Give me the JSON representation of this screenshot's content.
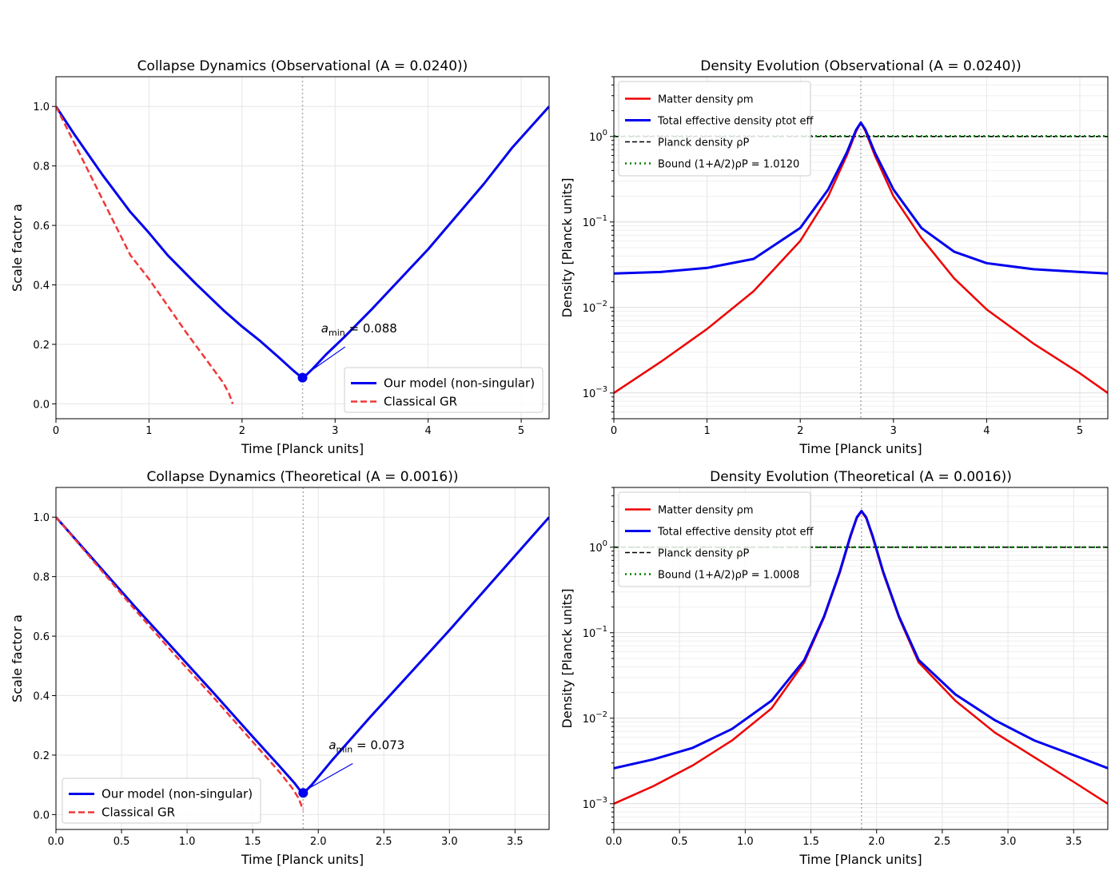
{
  "chart_data": [
    {
      "type": "line",
      "id": "p1",
      "title": "Collapse Dynamics (Observational (A = 0.0240))",
      "xlabel": "Time [Planck units]",
      "ylabel": "Scale factor a",
      "xlim": [
        0,
        5.3
      ],
      "ylim": [
        -0.05,
        1.1
      ],
      "yscale": "linear",
      "xticks": [
        0,
        1,
        2,
        3,
        4,
        5
      ],
      "xtick_labels": [
        "0",
        "1",
        "2",
        "3",
        "4",
        "5"
      ],
      "yticks": [
        0.0,
        0.2,
        0.4,
        0.6,
        0.8,
        1.0
      ],
      "ytick_labels": [
        "0.0",
        "0.2",
        "0.4",
        "0.6",
        "0.8",
        "1.0"
      ],
      "vline_x": 2.65,
      "series": [
        {
          "name": "Our model (non-singular)",
          "color": "#0000ee",
          "dash": "solid",
          "x": [
            0,
            0.2,
            0.5,
            0.8,
            1.0,
            1.2,
            1.5,
            1.8,
            2.0,
            2.2,
            2.4,
            2.55,
            2.62,
            2.65,
            2.68,
            2.75,
            2.9,
            3.1,
            3.4,
            3.7,
            4.0,
            4.3,
            4.6,
            4.9,
            5.1,
            5.3
          ],
          "y": [
            1.0,
            0.905,
            0.77,
            0.645,
            0.575,
            0.5,
            0.405,
            0.315,
            0.26,
            0.21,
            0.155,
            0.112,
            0.094,
            0.088,
            0.094,
            0.115,
            0.165,
            0.225,
            0.32,
            0.42,
            0.52,
            0.63,
            0.74,
            0.86,
            0.93,
            1.0
          ]
        },
        {
          "name": "Classical GR",
          "color": "#f03838",
          "dash": "dashed",
          "x": [
            0,
            0.2,
            0.4,
            0.6,
            0.8,
            1.0,
            1.2,
            1.4,
            1.6,
            1.8,
            1.86,
            1.9
          ],
          "y": [
            1.0,
            0.875,
            0.75,
            0.625,
            0.5,
            0.42,
            0.33,
            0.24,
            0.155,
            0.07,
            0.035,
            0.0
          ]
        }
      ],
      "marker": {
        "x": 2.65,
        "y": 0.088
      },
      "annotation": {
        "text_prefix": "a",
        "subscript": "min",
        "text_suffix": " = 0.088",
        "text_x": 2.85,
        "text_y": 0.24
      },
      "legend": {
        "placement": "lower-right",
        "entries": [
          "Our model (non-singular)",
          "Classical GR"
        ]
      }
    },
    {
      "type": "line",
      "id": "p2",
      "title": "Density Evolution (Observational (A = 0.0240))",
      "xlabel": "Time [Planck units]",
      "ylabel": "Density [Planck units]",
      "xlim": [
        0,
        5.3
      ],
      "ylim": [
        0.0005,
        5
      ],
      "yscale": "log",
      "xticks": [
        0,
        1,
        2,
        3,
        4,
        5
      ],
      "xtick_labels": [
        "0",
        "1",
        "2",
        "3",
        "4",
        "5"
      ],
      "ytick_exponents": [
        -3,
        -2,
        -1,
        0
      ],
      "vline_x": 2.65,
      "hlines": [
        {
          "name": "Planck density ρP",
          "y": 1.0,
          "color": "#000000",
          "dash": "dashed"
        },
        {
          "name": "Bound (1+A/2)ρP = 1.0120",
          "y": 1.012,
          "color": "#008000",
          "dash": "dotted"
        }
      ],
      "series": [
        {
          "name": "Matter density ρm",
          "color": "#ee0000",
          "dash": "solid",
          "x": [
            0,
            0.5,
            1.0,
            1.5,
            2.0,
            2.3,
            2.5,
            2.6,
            2.65,
            2.7,
            2.8,
            3.0,
            3.3,
            3.65,
            4.0,
            4.5,
            5.0,
            5.3
          ],
          "y": [
            0.001,
            0.0023,
            0.0056,
            0.0155,
            0.06,
            0.2,
            0.6,
            1.15,
            1.45,
            1.15,
            0.6,
            0.2,
            0.065,
            0.022,
            0.0095,
            0.0038,
            0.0017,
            0.001
          ]
        },
        {
          "name": "Total effective density ρtot eff",
          "color": "#0000ee",
          "dash": "solid",
          "x": [
            0,
            0.5,
            1.0,
            1.5,
            2.0,
            2.3,
            2.5,
            2.6,
            2.65,
            2.7,
            2.8,
            3.0,
            3.3,
            3.65,
            4.0,
            4.5,
            5.0,
            5.3
          ],
          "y": [
            0.025,
            0.026,
            0.029,
            0.037,
            0.085,
            0.24,
            0.65,
            1.2,
            1.45,
            1.2,
            0.65,
            0.24,
            0.085,
            0.045,
            0.033,
            0.028,
            0.026,
            0.025
          ]
        }
      ],
      "legend": {
        "placement": "top-left",
        "entries": [
          "Matter density ρm",
          "Total effective density ρtot eff",
          "Planck density ρP",
          "Bound (1+A/2)ρP = 1.0120"
        ]
      }
    },
    {
      "type": "line",
      "id": "p3",
      "title": "Collapse Dynamics (Theoretical (A = 0.0016))",
      "xlabel": "Time [Planck units]",
      "ylabel": "Scale factor a",
      "xlim": [
        0,
        3.76
      ],
      "ylim": [
        -0.05,
        1.1
      ],
      "yscale": "linear",
      "xticks": [
        0.0,
        0.5,
        1.0,
        1.5,
        2.0,
        2.5,
        3.0,
        3.5
      ],
      "xtick_labels": [
        "0.0",
        "0.5",
        "1.0",
        "1.5",
        "2.0",
        "2.5",
        "3.0",
        "3.5"
      ],
      "yticks": [
        0.0,
        0.2,
        0.4,
        0.6,
        0.8,
        1.0
      ],
      "ytick_labels": [
        "0.0",
        "0.2",
        "0.4",
        "0.6",
        "0.8",
        "1.0"
      ],
      "vline_x": 1.885,
      "series": [
        {
          "name": "Our model (non-singular)",
          "color": "#0000ee",
          "dash": "solid",
          "x": [
            0,
            0.3,
            0.6,
            0.9,
            1.2,
            1.5,
            1.7,
            1.82,
            1.86,
            1.885,
            1.91,
            1.95,
            2.1,
            2.4,
            2.7,
            3.0,
            3.3,
            3.6,
            3.76
          ],
          "y": [
            1.0,
            0.85,
            0.7,
            0.555,
            0.41,
            0.262,
            0.165,
            0.105,
            0.082,
            0.073,
            0.082,
            0.1,
            0.18,
            0.33,
            0.475,
            0.62,
            0.77,
            0.92,
            1.0
          ]
        },
        {
          "name": "Classical GR",
          "color": "#f03838",
          "dash": "dashed",
          "x": [
            0,
            0.3,
            0.6,
            0.9,
            1.2,
            1.5,
            1.7,
            1.8,
            1.85,
            1.885
          ],
          "y": [
            1.0,
            0.845,
            0.69,
            0.54,
            0.395,
            0.245,
            0.145,
            0.09,
            0.055,
            0.015
          ]
        }
      ],
      "marker": {
        "x": 1.885,
        "y": 0.073
      },
      "annotation": {
        "text_prefix": "a",
        "subscript": "min",
        "text_suffix": " = 0.073",
        "text_x": 2.08,
        "text_y": 0.22
      },
      "legend": {
        "placement": "lower-left",
        "entries": [
          "Our model (non-singular)",
          "Classical GR"
        ]
      }
    },
    {
      "type": "line",
      "id": "p4",
      "title": "Density Evolution (Theoretical (A = 0.0016))",
      "xlabel": "Time [Planck units]",
      "ylabel": "Density [Planck units]",
      "xlim": [
        0,
        3.76
      ],
      "ylim": [
        0.0005,
        5
      ],
      "yscale": "log",
      "xticks": [
        0.0,
        0.5,
        1.0,
        1.5,
        2.0,
        2.5,
        3.0,
        3.5
      ],
      "xtick_labels": [
        "0.0",
        "0.5",
        "1.0",
        "1.5",
        "2.0",
        "2.5",
        "3.0",
        "3.5"
      ],
      "ytick_exponents": [
        -3,
        -2,
        -1,
        0
      ],
      "vline_x": 1.885,
      "hlines": [
        {
          "name": "Planck density ρP",
          "y": 1.0,
          "color": "#000000",
          "dash": "dashed"
        },
        {
          "name": "Bound (1+A/2)ρP = 1.0008",
          "y": 1.0008,
          "color": "#008000",
          "dash": "dotted"
        }
      ],
      "series": [
        {
          "name": "Matter density ρm",
          "color": "#ee0000",
          "dash": "solid",
          "x": [
            0,
            0.3,
            0.6,
            0.9,
            1.2,
            1.45,
            1.6,
            1.72,
            1.8,
            1.85,
            1.885,
            1.92,
            1.97,
            2.05,
            2.17,
            2.32,
            2.6,
            2.9,
            3.2,
            3.5,
            3.76
          ],
          "y": [
            0.001,
            0.0016,
            0.0028,
            0.0055,
            0.013,
            0.045,
            0.15,
            0.5,
            1.3,
            2.2,
            2.6,
            2.2,
            1.3,
            0.5,
            0.15,
            0.045,
            0.016,
            0.0068,
            0.0035,
            0.0018,
            0.001
          ]
        },
        {
          "name": "Total effective density ρtot eff",
          "color": "#0000ee",
          "dash": "solid",
          "x": [
            0,
            0.3,
            0.6,
            0.9,
            1.2,
            1.45,
            1.6,
            1.72,
            1.8,
            1.85,
            1.885,
            1.92,
            1.97,
            2.05,
            2.17,
            2.32,
            2.6,
            2.9,
            3.2,
            3.5,
            3.76
          ],
          "y": [
            0.0026,
            0.0033,
            0.0045,
            0.0075,
            0.016,
            0.048,
            0.155,
            0.52,
            1.35,
            2.25,
            2.65,
            2.25,
            1.35,
            0.52,
            0.155,
            0.048,
            0.019,
            0.0095,
            0.0055,
            0.0037,
            0.0026
          ]
        }
      ],
      "legend": {
        "placement": "top-left",
        "entries": [
          "Matter density ρm",
          "Total effective density ρtot eff",
          "Planck density ρP",
          "Bound (1+A/2)ρP = 1.0008"
        ]
      }
    }
  ]
}
